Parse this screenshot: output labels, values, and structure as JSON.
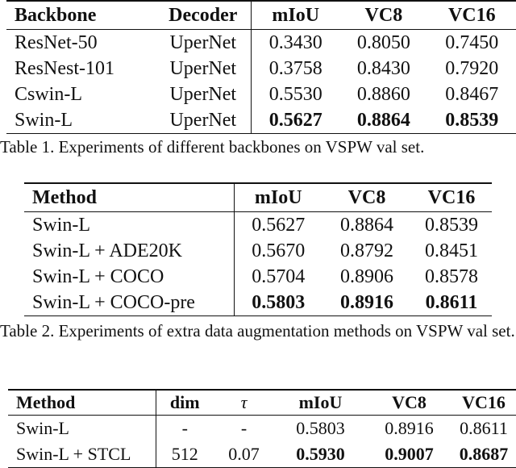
{
  "tables": [
    {
      "header": [
        "Backbone",
        "Decoder",
        "mIoU",
        "VC8",
        "VC16"
      ],
      "rows": [
        [
          "ResNet-50",
          "UperNet",
          "0.3430",
          "0.8050",
          "0.7450"
        ],
        [
          "ResNest-101",
          "UperNet",
          "0.3758",
          "0.8430",
          "0.7920"
        ],
        [
          "Cswin-L",
          "UperNet",
          "0.5530",
          "0.8860",
          "0.8467"
        ],
        [
          "Swin-L",
          "UperNet",
          "0.5627",
          "0.8864",
          "0.8539"
        ]
      ],
      "caption": "Table 1. Experiments of different backbones on VSPW val set."
    },
    {
      "header": [
        "Method",
        "mIoU",
        "VC8",
        "VC16"
      ],
      "rows": [
        [
          "Swin-L",
          "0.5627",
          "0.8864",
          "0.8539"
        ],
        [
          "Swin-L + ADE20K",
          "0.5670",
          "0.8792",
          "0.8451"
        ],
        [
          "Swin-L + COCO",
          "0.5704",
          "0.8906",
          "0.8578"
        ],
        [
          "Swin-L + COCO-pre",
          "0.5803",
          "0.8916",
          "0.8611"
        ]
      ],
      "caption": "Table 2. Experiments of extra data augmentation methods on VSPW val set."
    },
    {
      "header": [
        "Method",
        "dim",
        "τ",
        "mIoU",
        "VC8",
        "VC16"
      ],
      "rows": [
        [
          "Swin-L",
          "-",
          "-",
          "0.5803",
          "0.8916",
          "0.8611"
        ],
        [
          "Swin-L + STCL",
          "512",
          "0.07",
          "0.5930",
          "0.9007",
          "0.8687"
        ]
      ]
    }
  ]
}
